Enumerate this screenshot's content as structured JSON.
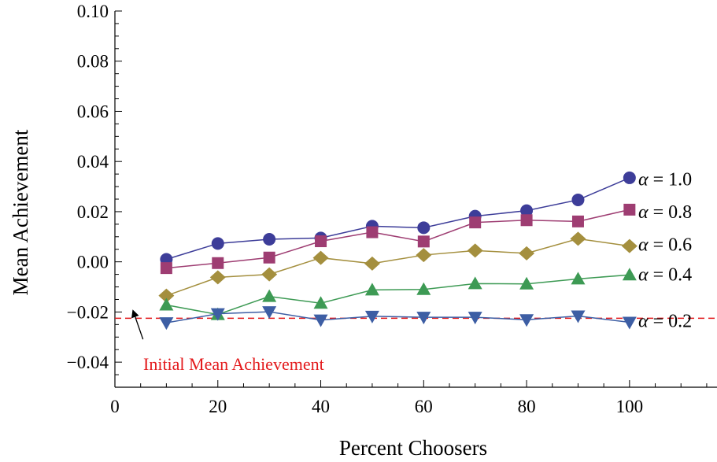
{
  "chart_data": {
    "type": "line",
    "title": "",
    "xlabel": "Percent Choosers",
    "ylabel": "Mean Achievement",
    "xlim": [
      0,
      117
    ],
    "ylim": [
      -0.05,
      0.1
    ],
    "x_ticks": [
      {
        "value": 0,
        "label": "0"
      },
      {
        "value": 20,
        "label": "20"
      },
      {
        "value": 40,
        "label": "40"
      },
      {
        "value": 60,
        "label": "60"
      },
      {
        "value": 80,
        "label": "80"
      },
      {
        "value": 100,
        "label": "100"
      }
    ],
    "y_ticks": [
      {
        "value": -0.04,
        "label": "−0.04"
      },
      {
        "value": -0.02,
        "label": "−0.02"
      },
      {
        "value": 0.0,
        "label": "0.00"
      },
      {
        "value": 0.02,
        "label": "0.02"
      },
      {
        "value": 0.04,
        "label": "0.04"
      },
      {
        "value": 0.06,
        "label": "0.06"
      },
      {
        "value": 0.08,
        "label": "0.08"
      },
      {
        "value": 0.1,
        "label": "0.10"
      }
    ],
    "x": [
      10,
      20,
      30,
      40,
      50,
      60,
      70,
      80,
      90,
      100
    ],
    "series": [
      {
        "name": "α = 1.0",
        "greek": "α",
        "value_text": " = 1.0",
        "marker": "circle",
        "color": "#3d3d99",
        "values": [
          0.001,
          0.0073,
          0.009,
          0.0095,
          0.0142,
          0.0136,
          0.0182,
          0.0204,
          0.0247,
          0.0335
        ]
      },
      {
        "name": "α = 0.8",
        "greek": "α",
        "value_text": " = 0.8",
        "marker": "square",
        "color": "#9e3d72",
        "values": [
          -0.0025,
          -0.0005,
          0.0017,
          0.0082,
          0.0118,
          0.0081,
          0.0157,
          0.0166,
          0.0161,
          0.0208
        ]
      },
      {
        "name": "α = 0.6",
        "greek": "α",
        "value_text": " = 0.6",
        "marker": "diamond",
        "color": "#a48f3e",
        "values": [
          -0.0135,
          -0.0062,
          -0.005,
          0.0016,
          -0.0007,
          0.0027,
          0.0045,
          0.0034,
          0.0092,
          0.0063
        ]
      },
      {
        "name": "α = 0.4",
        "greek": "α",
        "value_text": " = 0.4",
        "marker": "triangle-up",
        "color": "#3d9a54",
        "values": [
          -0.0172,
          -0.021,
          -0.0138,
          -0.0165,
          -0.0112,
          -0.011,
          -0.0087,
          -0.0088,
          -0.0068,
          -0.0052
        ]
      },
      {
        "name": "α = 0.2",
        "greek": "α",
        "value_text": " = 0.2",
        "marker": "triangle-down",
        "color": "#3d5ea4",
        "values": [
          -0.0243,
          -0.0207,
          -0.0199,
          -0.0232,
          -0.0217,
          -0.0221,
          -0.0221,
          -0.0231,
          -0.0216,
          -0.0241
        ]
      }
    ],
    "series_label_y": [
      0.033,
      0.02,
      0.007,
      -0.005,
      -0.0235
    ],
    "baseline": {
      "value": -0.0225,
      "label": "Initial Mean Achievement",
      "color": "#e31a1c",
      "style": "dashed"
    },
    "annotation_arrow": {
      "from": [
        5,
        -0.0265
      ],
      "to": [
        4,
        -0.024
      ]
    },
    "grid": false,
    "legend": "right-inline"
  }
}
